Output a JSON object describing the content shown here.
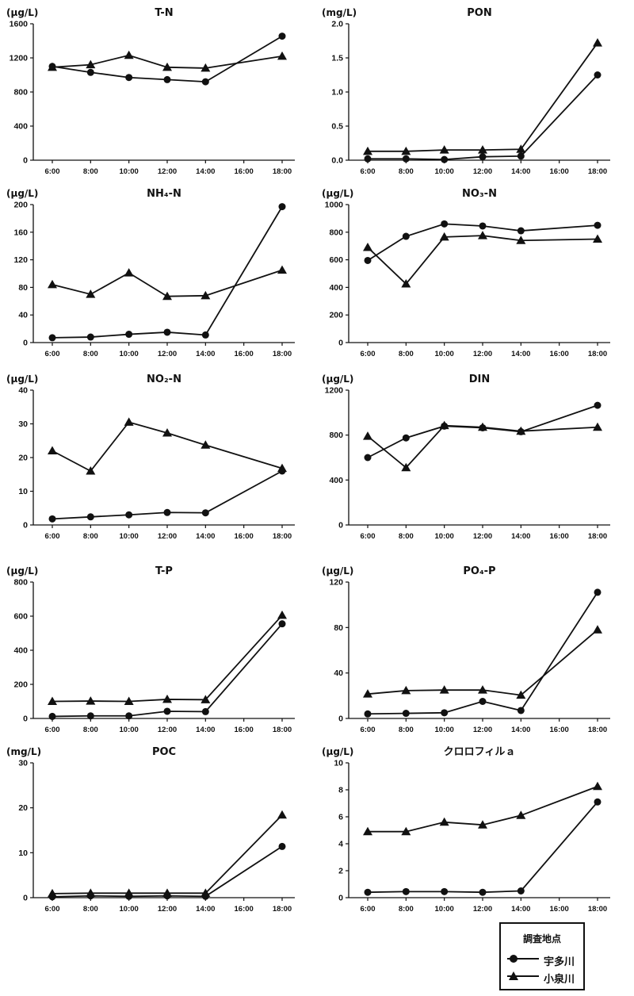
{
  "chart_data": [
    {
      "type": "line",
      "title": "T-N",
      "unit": "(μg/L)",
      "categories": [
        "6:00",
        "8:00",
        "10:00",
        "12:00",
        "14:00",
        "16:00",
        "18:00"
      ],
      "ylim": [
        0,
        1600
      ],
      "yticks": [
        "0",
        "400",
        "800",
        "1200",
        "1600"
      ],
      "series": [
        {
          "name": "宇多川",
          "marker": "circle",
          "values": [
            1100,
            1030,
            970,
            945,
            920,
            null,
            1455
          ]
        },
        {
          "name": "小泉川",
          "marker": "triangle",
          "values": [
            1090,
            1120,
            1230,
            1090,
            1080,
            null,
            1220
          ]
        }
      ]
    },
    {
      "type": "line",
      "title": "PON",
      "unit": "(mg/L)",
      "categories": [
        "6:00",
        "8:00",
        "10:00",
        "12:00",
        "14:00",
        "16:00",
        "18:00"
      ],
      "ylim": [
        0,
        2.0
      ],
      "yticks": [
        "0.0",
        "0.5",
        "1.0",
        "1.5",
        "2.0"
      ],
      "series": [
        {
          "name": "宇多川",
          "marker": "circle",
          "values": [
            0.02,
            0.02,
            0.01,
            0.05,
            0.06,
            null,
            1.25
          ]
        },
        {
          "name": "小泉川",
          "marker": "triangle",
          "values": [
            0.13,
            0.13,
            0.15,
            0.15,
            0.16,
            null,
            1.72
          ]
        }
      ]
    },
    {
      "type": "line",
      "title": "NH₄-N",
      "unit": "(μg/L)",
      "categories": [
        "6:00",
        "8:00",
        "10:00",
        "12:00",
        "14:00",
        "16:00",
        "18:00"
      ],
      "ylim": [
        0,
        200
      ],
      "yticks": [
        "0",
        "40",
        "80",
        "120",
        "160",
        "200"
      ],
      "series": [
        {
          "name": "宇多川",
          "marker": "circle",
          "values": [
            7,
            8,
            12,
            15,
            11,
            null,
            197
          ]
        },
        {
          "name": "小泉川",
          "marker": "triangle",
          "values": [
            84,
            70,
            101,
            67,
            68,
            null,
            105
          ]
        }
      ]
    },
    {
      "type": "line",
      "title": "NO₃-N",
      "unit": "(μg/L)",
      "categories": [
        "6:00",
        "8:00",
        "10:00",
        "12:00",
        "14:00",
        "16:00",
        "18:00"
      ],
      "ylim": [
        0,
        1000
      ],
      "yticks": [
        "0",
        "200",
        "400",
        "600",
        "800",
        "1000"
      ],
      "series": [
        {
          "name": "宇多川",
          "marker": "circle",
          "values": [
            595,
            770,
            860,
            845,
            810,
            null,
            850
          ]
        },
        {
          "name": "小泉川",
          "marker": "triangle",
          "values": [
            690,
            425,
            765,
            775,
            740,
            null,
            750
          ]
        }
      ]
    },
    {
      "type": "line",
      "title": "NO₂-N",
      "unit": "(μg/L)",
      "categories": [
        "6:00",
        "8:00",
        "10:00",
        "12:00",
        "14:00",
        "16:00",
        "18:00"
      ],
      "ylim": [
        0,
        40
      ],
      "yticks": [
        "0",
        "10",
        "20",
        "30",
        "40"
      ],
      "series": [
        {
          "name": "宇多川",
          "marker": "circle",
          "values": [
            1.8,
            2.4,
            3.0,
            3.7,
            3.6,
            null,
            16.0
          ]
        },
        {
          "name": "小泉川",
          "marker": "triangle",
          "values": [
            22.0,
            16.0,
            30.5,
            27.3,
            23.7,
            null,
            16.8
          ]
        }
      ]
    },
    {
      "type": "line",
      "title": "DIN",
      "unit": "(μg/L)",
      "categories": [
        "6:00",
        "8:00",
        "10:00",
        "12:00",
        "14:00",
        "16:00",
        "18:00"
      ],
      "ylim": [
        0,
        1200
      ],
      "yticks": [
        "0",
        "400",
        "800",
        "1200"
      ],
      "series": [
        {
          "name": "宇多川",
          "marker": "circle",
          "values": [
            600,
            775,
            880,
            865,
            830,
            null,
            1065
          ]
        },
        {
          "name": "小泉川",
          "marker": "triangle",
          "values": [
            790,
            510,
            885,
            870,
            835,
            null,
            870
          ]
        }
      ]
    },
    {
      "type": "line",
      "title": "T-P",
      "unit": "(μg/L)",
      "categories": [
        "6:00",
        "8:00",
        "10:00",
        "12:00",
        "14:00",
        "16:00",
        "18:00"
      ],
      "ylim": [
        0,
        800
      ],
      "yticks": [
        "0",
        "200",
        "400",
        "600",
        "800"
      ],
      "series": [
        {
          "name": "宇多川",
          "marker": "circle",
          "values": [
            12,
            15,
            15,
            42,
            40,
            null,
            555
          ]
        },
        {
          "name": "小泉川",
          "marker": "triangle",
          "values": [
            100,
            102,
            100,
            112,
            110,
            null,
            605
          ]
        }
      ]
    },
    {
      "type": "line",
      "title": "PO₄-P",
      "unit": "(μg/L)",
      "categories": [
        "6:00",
        "8:00",
        "10:00",
        "12:00",
        "14:00",
        "16:00",
        "18:00"
      ],
      "ylim": [
        0,
        120
      ],
      "yticks": [
        "0",
        "40",
        "80",
        "120"
      ],
      "series": [
        {
          "name": "宇多川",
          "marker": "circle",
          "values": [
            4,
            4.5,
            5,
            15,
            7,
            null,
            111
          ]
        },
        {
          "name": "小泉川",
          "marker": "triangle",
          "values": [
            21.5,
            24.5,
            25,
            25,
            20.5,
            null,
            78
          ]
        }
      ]
    },
    {
      "type": "line",
      "title": "POC",
      "unit": "(mg/L)",
      "categories": [
        "6:00",
        "8:00",
        "10:00",
        "12:00",
        "14:00",
        "16:00",
        "18:00"
      ],
      "ylim": [
        0,
        30
      ],
      "yticks": [
        "0",
        "10",
        "20",
        "30"
      ],
      "series": [
        {
          "name": "宇多川",
          "marker": "circle",
          "values": [
            0.2,
            0.4,
            0.3,
            0.4,
            0.3,
            null,
            11.4
          ]
        },
        {
          "name": "小泉川",
          "marker": "triangle",
          "values": [
            0.9,
            1.0,
            1.0,
            1.0,
            1.0,
            null,
            18.4
          ]
        }
      ]
    },
    {
      "type": "line",
      "title": "クロロフィルａ",
      "unit": "(μg/L)",
      "categories": [
        "6:00",
        "8:00",
        "10:00",
        "12:00",
        "14:00",
        "16:00",
        "18:00"
      ],
      "ylim": [
        0,
        10
      ],
      "yticks": [
        "0",
        "2",
        "4",
        "6",
        "8",
        "10"
      ],
      "series": [
        {
          "name": "宇多川",
          "marker": "circle",
          "values": [
            0.4,
            0.45,
            0.45,
            0.4,
            0.5,
            null,
            7.1
          ]
        },
        {
          "name": "小泉川",
          "marker": "triangle",
          "values": [
            4.9,
            4.9,
            5.6,
            5.4,
            6.1,
            null,
            8.25
          ]
        }
      ]
    }
  ],
  "legend": {
    "title": "調査地点",
    "items": [
      {
        "label": "宇多川",
        "marker": "circle"
      },
      {
        "label": "小泉川",
        "marker": "triangle"
      }
    ]
  }
}
